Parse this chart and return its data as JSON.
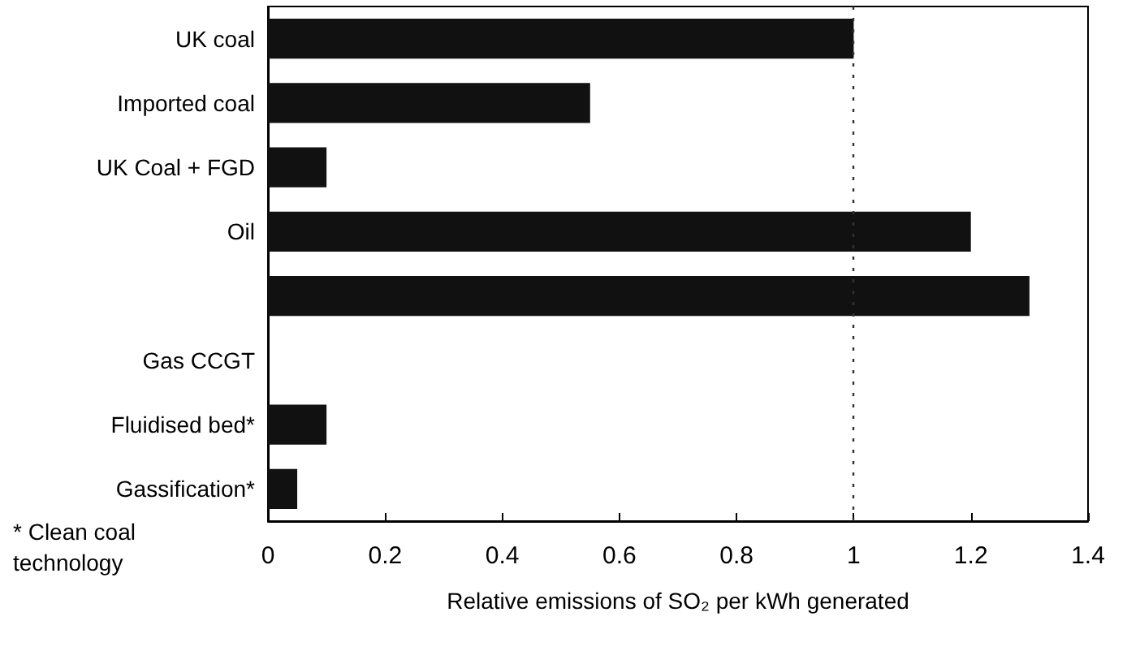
{
  "chart_data": {
    "type": "bar",
    "orientation": "horizontal",
    "categories": [
      "UK coal",
      "Imported coal",
      "UK Coal + FGD",
      "Oil",
      null,
      "Gas CCGT",
      "Fluidised bed*",
      "Gassification*"
    ],
    "values": [
      1.0,
      0.55,
      0.1,
      1.2,
      1.3,
      0,
      0.1,
      0.05
    ],
    "color": "#111111",
    "xlim": [
      0,
      1.4
    ],
    "xticks": [
      0,
      0.2,
      0.4,
      0.6,
      0.8,
      1,
      1.2,
      1.4
    ],
    "xlabel": "Relative emissions of SO₂ per kWh generated",
    "ref_lines": [
      {
        "axis": "x",
        "value": 1,
        "line_style": "dotted",
        "color": "#333333"
      }
    ],
    "annotations": [
      "* Clean coal technology"
    ],
    "grid": false
  }
}
